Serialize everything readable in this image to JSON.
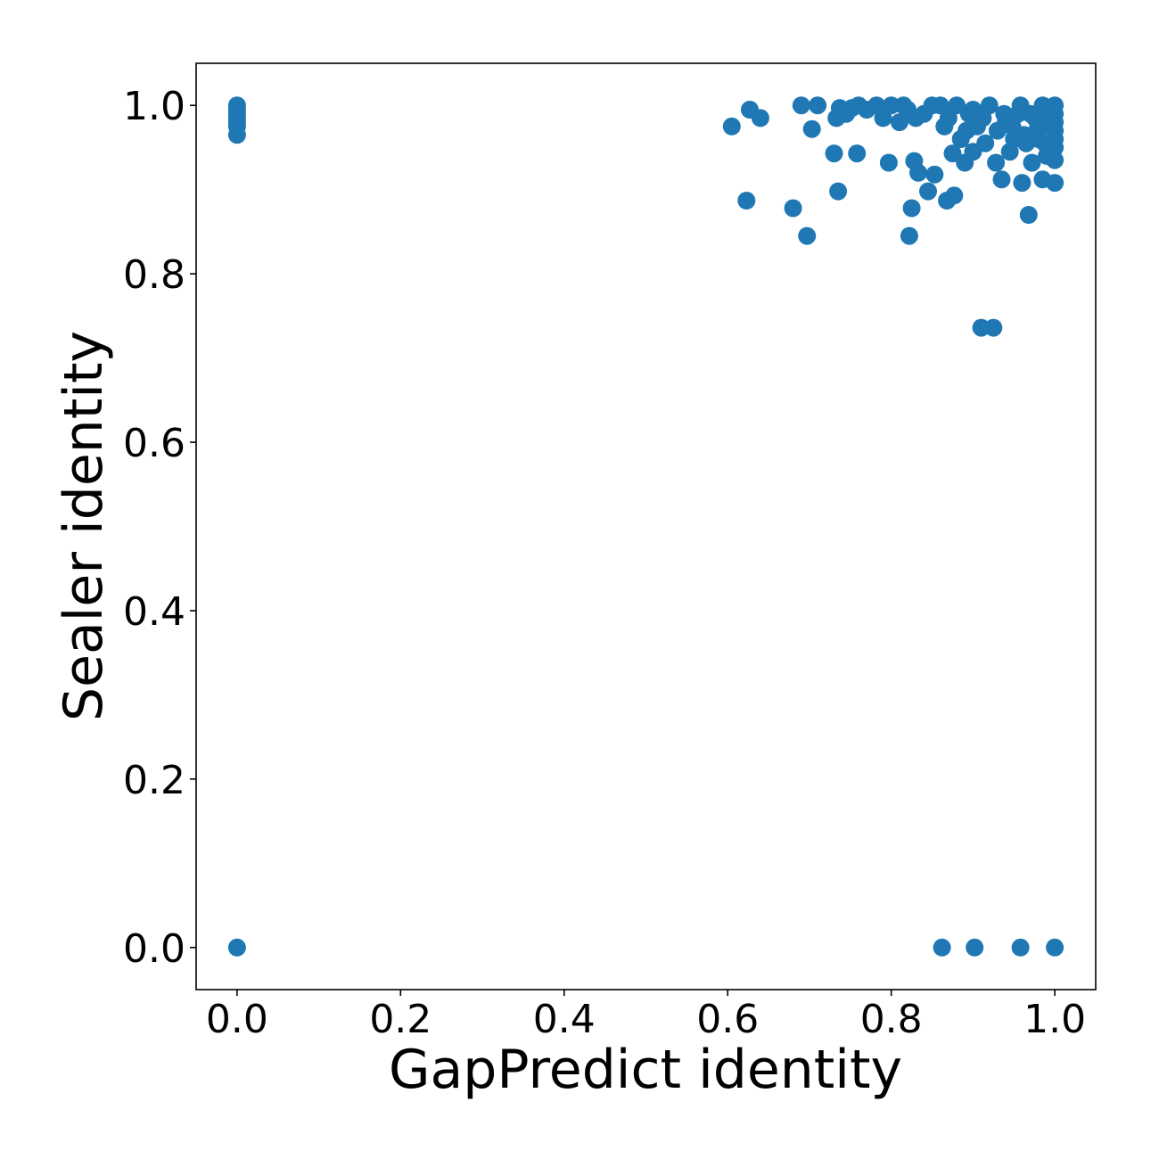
{
  "chart_data": {
    "type": "scatter",
    "title": "",
    "xlabel": "GapPredict identity",
    "ylabel": "Sealer identity",
    "xlim": [
      -0.05,
      1.05
    ],
    "ylim": [
      -0.05,
      1.05
    ],
    "x_ticks": [
      0.0,
      0.2,
      0.4,
      0.6,
      0.8,
      1.0
    ],
    "x_tick_labels": [
      "0.0",
      "0.2",
      "0.4",
      "0.6",
      "0.8",
      "1.0"
    ],
    "y_ticks": [
      0.0,
      0.2,
      0.4,
      0.6,
      0.8,
      1.0
    ],
    "y_tick_labels": [
      "0.0",
      "0.2",
      "0.4",
      "0.6",
      "0.8",
      "1.0"
    ],
    "grid": false,
    "marker_color": "#1f77b4",
    "series": [
      {
        "points": [
          [
            0.0,
            1.0
          ],
          [
            0.0,
            0.995
          ],
          [
            0.0,
            0.99
          ],
          [
            0.0,
            0.985
          ],
          [
            0.0,
            0.98
          ],
          [
            0.0,
            0.975
          ],
          [
            0.0,
            0.965
          ],
          [
            0.0,
            0.0
          ],
          [
            0.605,
            0.975
          ],
          [
            0.623,
            0.887
          ],
          [
            0.627,
            0.995
          ],
          [
            0.64,
            0.985
          ],
          [
            0.68,
            0.878
          ],
          [
            0.69,
            1.0
          ],
          [
            0.697,
            0.845
          ],
          [
            0.703,
            0.972
          ],
          [
            0.71,
            1.0
          ],
          [
            0.73,
            0.943
          ],
          [
            0.733,
            0.985
          ],
          [
            0.735,
            0.898
          ],
          [
            0.737,
            0.997
          ],
          [
            0.745,
            0.99
          ],
          [
            0.752,
            0.997
          ],
          [
            0.758,
            0.943
          ],
          [
            0.76,
            1.0
          ],
          [
            0.77,
            0.995
          ],
          [
            0.782,
            1.0
          ],
          [
            0.79,
            0.985
          ],
          [
            0.797,
            0.932
          ],
          [
            0.8,
            1.0
          ],
          [
            0.81,
            0.98
          ],
          [
            0.815,
            1.0
          ],
          [
            0.822,
            0.845
          ],
          [
            0.825,
            0.878
          ],
          [
            0.828,
            0.934
          ],
          [
            0.83,
            0.985
          ],
          [
            0.833,
            0.92
          ],
          [
            0.845,
            0.898
          ],
          [
            0.853,
            0.918
          ],
          [
            0.86,
            1.0
          ],
          [
            0.865,
            0.975
          ],
          [
            0.868,
            0.887
          ],
          [
            0.875,
            0.943
          ],
          [
            0.877,
            0.893
          ],
          [
            0.885,
            0.96
          ],
          [
            0.89,
            0.932
          ],
          [
            0.895,
            0.99
          ],
          [
            0.9,
            0.945
          ],
          [
            0.905,
            0.975
          ],
          [
            0.91,
            0.736
          ],
          [
            0.915,
            0.955
          ],
          [
            0.925,
            0.736
          ],
          [
            0.928,
            0.932
          ],
          [
            0.935,
            0.912
          ],
          [
            0.94,
            0.98
          ],
          [
            0.945,
            0.945
          ],
          [
            0.95,
            0.96
          ],
          [
            0.955,
            0.99
          ],
          [
            0.96,
            0.908
          ],
          [
            0.965,
            0.955
          ],
          [
            0.968,
            0.87
          ],
          [
            0.972,
            0.932
          ],
          [
            0.976,
            0.985
          ],
          [
            0.98,
            0.96
          ],
          [
            0.985,
            0.912
          ],
          [
            0.99,
            0.94
          ],
          [
            0.995,
            0.975
          ],
          [
            1.0,
            1.0
          ],
          [
            1.0,
            0.99
          ],
          [
            1.0,
            0.98
          ],
          [
            1.0,
            0.97
          ],
          [
            1.0,
            0.96
          ],
          [
            1.0,
            0.95
          ],
          [
            1.0,
            0.935
          ],
          [
            1.0,
            0.908
          ],
          [
            0.82,
            0.995
          ],
          [
            0.84,
            0.99
          ],
          [
            0.85,
            1.0
          ],
          [
            0.87,
            0.985
          ],
          [
            0.88,
            1.0
          ],
          [
            0.892,
            0.97
          ],
          [
            0.9,
            0.995
          ],
          [
            0.912,
            0.985
          ],
          [
            0.92,
            1.0
          ],
          [
            0.93,
            0.97
          ],
          [
            0.938,
            0.99
          ],
          [
            0.948,
            0.975
          ],
          [
            0.958,
            1.0
          ],
          [
            0.962,
            0.965
          ],
          [
            0.97,
            0.99
          ],
          [
            0.978,
            0.97
          ],
          [
            0.985,
            1.0
          ],
          [
            0.988,
            0.955
          ],
          [
            0.992,
            0.985
          ],
          [
            0.996,
            0.945
          ],
          [
            0.862,
            0.0
          ],
          [
            0.902,
            0.0
          ],
          [
            0.958,
            0.0
          ],
          [
            1.0,
            0.0
          ]
        ]
      }
    ]
  }
}
